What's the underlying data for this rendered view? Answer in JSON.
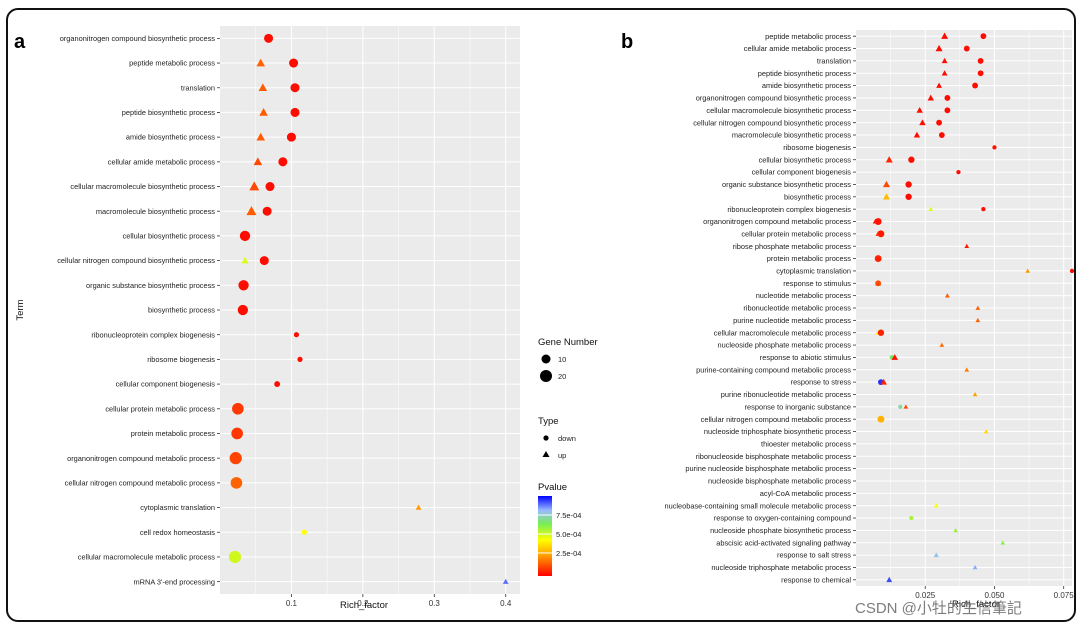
{
  "figure": {
    "watermark": "CSDN @小牡的生信筆記"
  },
  "colors": {
    "panel_bg": "#ebebeb",
    "grid": "#ffffff"
  },
  "legend": {
    "gene_title": "Gene Number",
    "gene_items": [
      "10",
      "20"
    ],
    "type_title": "Type",
    "type_items": [
      "down",
      "up"
    ],
    "p_title": "Pvalue",
    "p_ticks": [
      "7.5e-04",
      "5.0e-04",
      "2.5e-04"
    ]
  },
  "chart_data": [
    {
      "panel": "a",
      "type": "scatter",
      "xlabel": "Rich_factor",
      "ylabel": "Term",
      "xlim": [
        0,
        0.42
      ],
      "xticks": [
        "0.1",
        "0.2",
        "0.3",
        "0.4"
      ],
      "xtick_values": [
        0.1,
        0.2,
        0.3,
        0.4
      ],
      "points": [
        {
          "term": "organonitrogen compound biosynthetic process",
          "rich": 0.068,
          "type": "down",
          "genes": 16,
          "p": 2e-05
        },
        {
          "term": "peptide metabolic process",
          "rich": 0.057,
          "type": "up",
          "genes": 14,
          "p": 0.00016
        },
        {
          "term": "peptide metabolic process",
          "rich": 0.103,
          "type": "down",
          "genes": 16,
          "p": 2e-05
        },
        {
          "term": "translation",
          "rich": 0.06,
          "type": "up",
          "genes": 14,
          "p": 0.00015
        },
        {
          "term": "translation",
          "rich": 0.105,
          "type": "down",
          "genes": 16,
          "p": 2e-05
        },
        {
          "term": "peptide biosynthetic process",
          "rich": 0.061,
          "type": "up",
          "genes": 14,
          "p": 0.00015
        },
        {
          "term": "peptide biosynthetic process",
          "rich": 0.105,
          "type": "down",
          "genes": 16,
          "p": 2e-05
        },
        {
          "term": "amide biosynthetic process",
          "rich": 0.057,
          "type": "up",
          "genes": 14,
          "p": 0.00015
        },
        {
          "term": "amide biosynthetic process",
          "rich": 0.1,
          "type": "down",
          "genes": 16,
          "p": 2e-05
        },
        {
          "term": "cellular amide metabolic process",
          "rich": 0.053,
          "type": "up",
          "genes": 14,
          "p": 0.00012
        },
        {
          "term": "cellular amide metabolic process",
          "rich": 0.088,
          "type": "down",
          "genes": 16,
          "p": 2e-05
        },
        {
          "term": "cellular macromolecule biosynthetic process",
          "rich": 0.048,
          "type": "up",
          "genes": 16,
          "p": 0.00012
        },
        {
          "term": "cellular macromolecule biosynthetic process",
          "rich": 0.07,
          "type": "down",
          "genes": 16,
          "p": 2e-05
        },
        {
          "term": "macromolecule biosynthetic process",
          "rich": 0.044,
          "type": "up",
          "genes": 16,
          "p": 0.00015
        },
        {
          "term": "macromolecule biosynthetic process",
          "rich": 0.066,
          "type": "down",
          "genes": 16,
          "p": 2e-05
        },
        {
          "term": "cellular biosynthetic process",
          "rich": 0.035,
          "type": "down",
          "genes": 18,
          "p": 2e-05
        },
        {
          "term": "cellular nitrogen compound biosynthetic process",
          "rich": 0.035,
          "type": "up",
          "genes": 12,
          "p": 0.0005
        },
        {
          "term": "cellular nitrogen compound biosynthetic process",
          "rich": 0.062,
          "type": "down",
          "genes": 16,
          "p": 2e-05
        },
        {
          "term": "organic substance biosynthetic process",
          "rich": 0.033,
          "type": "down",
          "genes": 18,
          "p": 2e-05
        },
        {
          "term": "biosynthetic process",
          "rich": 0.032,
          "type": "down",
          "genes": 18,
          "p": 2e-05
        },
        {
          "term": "ribonucleoprotein complex biogenesis",
          "rich": 0.107,
          "type": "down",
          "genes": 10,
          "p": 2e-05
        },
        {
          "term": "ribosome biogenesis",
          "rich": 0.112,
          "type": "down",
          "genes": 10,
          "p": 2e-05
        },
        {
          "term": "cellular component biogenesis",
          "rich": 0.08,
          "type": "down",
          "genes": 11,
          "p": 2e-05
        },
        {
          "term": "cellular protein metabolic process",
          "rich": 0.025,
          "type": "down",
          "genes": 20,
          "p": 9e-05
        },
        {
          "term": "protein metabolic process",
          "rich": 0.024,
          "type": "down",
          "genes": 20,
          "p": 9e-05
        },
        {
          "term": "organonitrogen compound metabolic process",
          "rich": 0.022,
          "type": "down",
          "genes": 21,
          "p": 0.00011
        },
        {
          "term": "cellular nitrogen compound metabolic process",
          "rich": 0.023,
          "type": "down",
          "genes": 20,
          "p": 0.00016
        },
        {
          "term": "cytoplasmic translation",
          "rich": 0.278,
          "type": "up",
          "genes": 10,
          "p": 0.00025
        },
        {
          "term": "cell redox homeostasis",
          "rich": 0.118,
          "type": "down",
          "genes": 10,
          "p": 0.00045
        },
        {
          "term": "cellular macromolecule metabolic process",
          "rich": 0.021,
          "type": "down",
          "genes": 21,
          "p": 0.00052
        },
        {
          "term": "mRNA 3'-end processing",
          "rich": 0.4,
          "type": "up",
          "genes": 10,
          "p": 0.00088
        }
      ],
      "terms": [
        "organonitrogen compound biosynthetic process",
        "peptide metabolic process",
        "translation",
        "peptide biosynthetic process",
        "amide biosynthetic process",
        "cellular amide metabolic process",
        "cellular macromolecule biosynthetic process",
        "macromolecule biosynthetic process",
        "cellular biosynthetic process",
        "cellular nitrogen compound biosynthetic process",
        "organic substance biosynthetic process",
        "biosynthetic process",
        "ribonucleoprotein complex biogenesis",
        "ribosome biogenesis",
        "cellular component biogenesis",
        "cellular protein metabolic process",
        "protein metabolic process",
        "organonitrogen compound metabolic process",
        "cellular nitrogen compound metabolic process",
        "cytoplasmic translation",
        "cell redox homeostasis",
        "cellular macromolecule metabolic process",
        "mRNA 3'-end processing"
      ]
    },
    {
      "panel": "b",
      "type": "scatter",
      "xlabel": "Rich_factor",
      "xlim": [
        0,
        0.078
      ],
      "xticks": [
        "0.025",
        "0.050",
        "0.075"
      ],
      "xtick_values": [
        0.025,
        0.05,
        0.075
      ],
      "terms": [
        "peptide metabolic process",
        "cellular amide metabolic process",
        "translation",
        "peptide biosynthetic process",
        "amide biosynthetic process",
        "organonitrogen compound biosynthetic process",
        "cellular macromolecule biosynthetic process",
        "cellular nitrogen compound biosynthetic process",
        "macromolecule biosynthetic process",
        "ribosome biogenesis",
        "cellular biosynthetic process",
        "cellular component biogenesis",
        "organic substance biosynthetic process",
        "biosynthetic process",
        "ribonucleoprotein complex biogenesis",
        "organonitrogen compound metabolic process",
        "cellular protein metabolic process",
        "ribose phosphate metabolic process",
        "protein metabolic process",
        "cytoplasmic translation",
        "response to stimulus",
        "nucleotide metabolic process",
        "ribonucleotide metabolic process",
        "purine nucleotide metabolic process",
        "cellular macromolecule metabolic process",
        "nucleoside phosphate metabolic process",
        "response to abiotic stimulus",
        "purine-containing compound metabolic process",
        "response to stress",
        "purine ribonucleotide metabolic process",
        "response to inorganic substance",
        "cellular nitrogen compound metabolic process",
        "nucleoside triphosphate biosynthetic process",
        "thioester metabolic process",
        "ribonucleoside bisphosphate metabolic process",
        "purine nucleoside bisphosphate metabolic process",
        "nucleoside bisphosphate metabolic process",
        "acyl-CoA metabolic process",
        "nucleobase-containing small molecule metabolic process",
        "response to oxygen-containing compound",
        "nucleoside phosphate biosynthetic process",
        "abscisic acid-activated signaling pathway",
        "response to salt stress",
        "nucleoside triphosphate metabolic process",
        "response to chemical"
      ],
      "points": [
        {
          "term": "peptide metabolic process",
          "rich": 0.032,
          "type": "up",
          "genes": 14,
          "p": 2e-05
        },
        {
          "term": "peptide metabolic process",
          "rich": 0.046,
          "type": "down",
          "genes": 13,
          "p": 2e-05
        },
        {
          "term": "cellular amide metabolic process",
          "rich": 0.03,
          "type": "up",
          "genes": 14,
          "p": 2e-05
        },
        {
          "term": "cellular amide metabolic process",
          "rich": 0.04,
          "type": "down",
          "genes": 13,
          "p": 2e-05
        },
        {
          "term": "translation",
          "rich": 0.032,
          "type": "up",
          "genes": 12,
          "p": 2e-05
        },
        {
          "term": "translation",
          "rich": 0.045,
          "type": "down",
          "genes": 13,
          "p": 2e-05
        },
        {
          "term": "peptide biosynthetic process",
          "rich": 0.032,
          "type": "up",
          "genes": 12,
          "p": 2e-05
        },
        {
          "term": "peptide biosynthetic process",
          "rich": 0.045,
          "type": "down",
          "genes": 13,
          "p": 2e-05
        },
        {
          "term": "amide biosynthetic process",
          "rich": 0.03,
          "type": "up",
          "genes": 12,
          "p": 2e-05
        },
        {
          "term": "amide biosynthetic process",
          "rich": 0.043,
          "type": "down",
          "genes": 13,
          "p": 2e-05
        },
        {
          "term": "organonitrogen compound biosynthetic process",
          "rich": 0.027,
          "type": "up",
          "genes": 13,
          "p": 2e-05
        },
        {
          "term": "organonitrogen compound biosynthetic process",
          "rich": 0.033,
          "type": "down",
          "genes": 13,
          "p": 2e-05
        },
        {
          "term": "cellular macromolecule biosynthetic process",
          "rich": 0.023,
          "type": "up",
          "genes": 13,
          "p": 2e-05
        },
        {
          "term": "cellular macromolecule biosynthetic process",
          "rich": 0.033,
          "type": "down",
          "genes": 13,
          "p": 2e-05
        },
        {
          "term": "cellular nitrogen compound biosynthetic process",
          "rich": 0.024,
          "type": "up",
          "genes": 13,
          "p": 2e-05
        },
        {
          "term": "cellular nitrogen compound biosynthetic process",
          "rich": 0.03,
          "type": "down",
          "genes": 13,
          "p": 2e-05
        },
        {
          "term": "macromolecule biosynthetic process",
          "rich": 0.022,
          "type": "up",
          "genes": 13,
          "p": 2e-05
        },
        {
          "term": "macromolecule biosynthetic process",
          "rich": 0.031,
          "type": "down",
          "genes": 13,
          "p": 2e-05
        },
        {
          "term": "ribosome biogenesis",
          "rich": 0.05,
          "type": "down",
          "genes": 10,
          "p": 2e-05
        },
        {
          "term": "cellular biosynthetic process",
          "rich": 0.012,
          "type": "up",
          "genes": 14,
          "p": 6e-05
        },
        {
          "term": "cellular biosynthetic process",
          "rich": 0.02,
          "type": "down",
          "genes": 14,
          "p": 2e-05
        },
        {
          "term": "cellular component biogenesis",
          "rich": 0.037,
          "type": "down",
          "genes": 10,
          "p": 2e-05
        },
        {
          "term": "organic substance biosynthetic process",
          "rich": 0.011,
          "type": "up",
          "genes": 14,
          "p": 0.00012
        },
        {
          "term": "organic substance biosynthetic process",
          "rich": 0.019,
          "type": "down",
          "genes": 14,
          "p": 2e-05
        },
        {
          "term": "biosynthetic process",
          "rich": 0.011,
          "type": "up",
          "genes": 14,
          "p": 0.00032
        },
        {
          "term": "biosynthetic process",
          "rich": 0.019,
          "type": "down",
          "genes": 14,
          "p": 2e-05
        },
        {
          "term": "ribonucleoprotein complex biogenesis",
          "rich": 0.046,
          "type": "down",
          "genes": 10,
          "p": 2e-05
        },
        {
          "term": "ribonucleoprotein complex biogenesis",
          "rich": 0.027,
          "type": "up",
          "genes": 10,
          "p": 0.0005
        },
        {
          "term": "organonitrogen compound metabolic process",
          "rich": 0.008,
          "type": "down",
          "genes": 15,
          "p": 3e-05
        },
        {
          "term": "organonitrogen compound metabolic process",
          "rich": 0.007,
          "type": "up",
          "genes": 11,
          "p": 3e-05
        },
        {
          "term": "cellular protein metabolic process",
          "rich": 0.009,
          "type": "down",
          "genes": 15,
          "p": 4e-05
        },
        {
          "term": "cellular protein metabolic process",
          "rich": 0.008,
          "type": "up",
          "genes": 11,
          "p": 6e-05
        },
        {
          "term": "ribose phosphate metabolic process",
          "rich": 0.04,
          "type": "up",
          "genes": 10,
          "p": 4e-05
        },
        {
          "term": "protein metabolic process",
          "rich": 0.008,
          "type": "down",
          "genes": 15,
          "p": 6e-05
        },
        {
          "term": "protein metabolic process",
          "rich": 0.008,
          "type": "up",
          "genes": 11,
          "p": 5e-05
        },
        {
          "term": "cytoplasmic translation",
          "rich": 0.078,
          "type": "down",
          "genes": 10,
          "p": 2e-05
        },
        {
          "term": "cytoplasmic translation",
          "rich": 0.062,
          "type": "up",
          "genes": 10,
          "p": 0.00025
        },
        {
          "term": "response to stimulus",
          "rich": 0.008,
          "type": "up",
          "genes": 12,
          "p": 0.00012
        },
        {
          "term": "response to stimulus",
          "rich": 0.008,
          "type": "down",
          "genes": 13,
          "p": 0.00012
        },
        {
          "term": "nucleotide metabolic process",
          "rich": 0.033,
          "type": "up",
          "genes": 10,
          "p": 0.00014
        },
        {
          "term": "ribonucleotide metabolic process",
          "rich": 0.044,
          "type": "up",
          "genes": 10,
          "p": 0.00016
        },
        {
          "term": "purine nucleotide metabolic process",
          "rich": 0.044,
          "type": "up",
          "genes": 10,
          "p": 0.00016
        },
        {
          "term": "cellular macromolecule metabolic process",
          "rich": 0.008,
          "type": "up",
          "genes": 11,
          "p": 0.00042
        },
        {
          "term": "cellular macromolecule metabolic process",
          "rich": 0.009,
          "type": "down",
          "genes": 14,
          "p": 5e-05
        },
        {
          "term": "nucleoside phosphate metabolic process",
          "rich": 0.031,
          "type": "up",
          "genes": 10,
          "p": 0.00018
        },
        {
          "term": "response to abiotic stimulus",
          "rich": 0.013,
          "type": "down",
          "genes": 11,
          "p": 0.00066
        },
        {
          "term": "response to abiotic stimulus",
          "rich": 0.014,
          "type": "up",
          "genes": 13,
          "p": 3e-05
        },
        {
          "term": "purine-containing compound metabolic process",
          "rich": 0.04,
          "type": "up",
          "genes": 10,
          "p": 0.0002
        },
        {
          "term": "response to stress",
          "rich": 0.009,
          "type": "down",
          "genes": 13,
          "p": 0.00095
        },
        {
          "term": "response to stress",
          "rich": 0.01,
          "type": "up",
          "genes": 13,
          "p": 5e-05
        },
        {
          "term": "purine ribonucleotide metabolic process",
          "rich": 0.043,
          "type": "up",
          "genes": 10,
          "p": 0.00027
        },
        {
          "term": "response to inorganic substance",
          "rich": 0.016,
          "type": "down",
          "genes": 10,
          "p": 0.00072
        },
        {
          "term": "response to inorganic substance",
          "rich": 0.018,
          "type": "up",
          "genes": 10,
          "p": 0.00012
        },
        {
          "term": "cellular nitrogen compound metabolic process",
          "rich": 0.009,
          "type": "down",
          "genes": 15,
          "p": 0.0003
        },
        {
          "term": "nucleoside triphosphate biosynthetic process",
          "rich": 0.047,
          "type": "up",
          "genes": 10,
          "p": 0.00038
        },
        {
          "term": "nucleobase-containing small molecule metabolic process",
          "rich": 0.029,
          "type": "up",
          "genes": 10,
          "p": 0.00045
        },
        {
          "term": "response to oxygen-containing compound",
          "rich": 0.02,
          "type": "down",
          "genes": 10,
          "p": 0.00058
        },
        {
          "term": "nucleoside phosphate biosynthetic process",
          "rich": 0.036,
          "type": "up",
          "genes": 10,
          "p": 0.0006
        },
        {
          "term": "abscisic acid-activated signaling pathway",
          "rich": 0.053,
          "type": "up",
          "genes": 10,
          "p": 0.00062
        },
        {
          "term": "response to salt stress",
          "rich": 0.029,
          "type": "up",
          "genes": 11,
          "p": 0.00078
        },
        {
          "term": "nucleoside triphosphate metabolic process",
          "rich": 0.043,
          "type": "up",
          "genes": 10,
          "p": 0.00082
        },
        {
          "term": "response to chemical",
          "rich": 0.012,
          "type": "up",
          "genes": 12,
          "p": 0.00092
        }
      ]
    }
  ]
}
